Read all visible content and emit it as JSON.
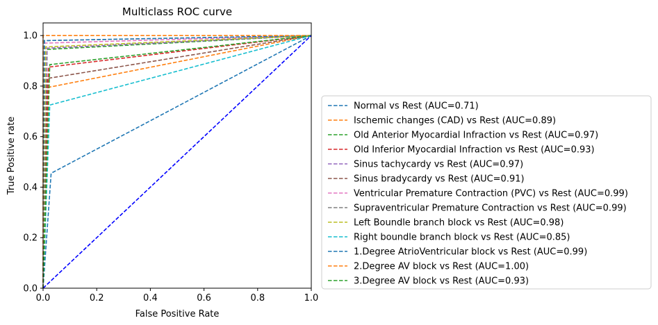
{
  "chart_data": {
    "type": "line",
    "title": "Multiclass ROC curve",
    "xlabel": "False Positive Rate",
    "ylabel": "True Positive rate",
    "xlim": [
      0,
      1
    ],
    "ylim": [
      0,
      1.05
    ],
    "xticks": [
      "0.0",
      "0.2",
      "0.4",
      "0.6",
      "0.8",
      "1.0"
    ],
    "yticks": [
      "0.0",
      "0.2",
      "0.4",
      "0.6",
      "0.8",
      "1.0"
    ],
    "grid": false,
    "legend_position": "right",
    "diagonal": {
      "x": [
        0,
        1
      ],
      "y": [
        0,
        1
      ],
      "color": "#0000ff",
      "style": "dashed"
    },
    "series": [
      {
        "name": "Normal vs Rest (AUC=0.71)",
        "color": "#1f77b4",
        "x": [
          0,
          0.03,
          1
        ],
        "y": [
          0,
          0.455,
          1
        ]
      },
      {
        "name": "Ischemic changes (CAD) vs Rest (AUC=0.89)",
        "color": "#ff7f0e",
        "x": [
          0,
          0.02,
          1
        ],
        "y": [
          0,
          0.795,
          1
        ]
      },
      {
        "name": "Old Anterior Myocardial Infraction vs Rest (AUC=0.97)",
        "color": "#2ca02c",
        "x": [
          0,
          0.015,
          1
        ],
        "y": [
          0,
          0.945,
          1
        ]
      },
      {
        "name": "Old Inferior Myocardial Infraction vs Rest (AUC=0.93)",
        "color": "#d62728",
        "x": [
          0,
          0.02,
          1
        ],
        "y": [
          0,
          0.875,
          1
        ]
      },
      {
        "name": "Sinus tachycardy vs Rest (AUC=0.97)",
        "color": "#9467bd",
        "x": [
          0,
          0.015,
          1
        ],
        "y": [
          0,
          0.95,
          1
        ]
      },
      {
        "name": "Sinus bradycardy vs Rest (AUC=0.91)",
        "color": "#8c564b",
        "x": [
          0,
          0.015,
          1
        ],
        "y": [
          0,
          0.83,
          1
        ]
      },
      {
        "name": "Ventricular Premature Contraction (PVC) vs Rest (AUC=0.99)",
        "color": "#e377c2",
        "x": [
          0,
          0.005,
          1
        ],
        "y": [
          0,
          0.97,
          1
        ]
      },
      {
        "name": "Supraventricular Premature Contraction vs Rest (AUC=0.99)",
        "color": "#7f7f7f",
        "x": [
          0,
          0.005,
          1
        ],
        "y": [
          0,
          0.98,
          1
        ]
      },
      {
        "name": "Left Boundle branch block vs Rest (AUC=0.98)",
        "color": "#bcbd22",
        "x": [
          0,
          0.01,
          1
        ],
        "y": [
          0,
          0.955,
          1
        ]
      },
      {
        "name": "Right boundle branch block vs Rest (AUC=0.85)",
        "color": "#17becf",
        "x": [
          0,
          0.025,
          1
        ],
        "y": [
          0,
          0.725,
          1
        ]
      },
      {
        "name": "1.Degree AtrioVentricular block vs Rest (AUC=0.99)",
        "color": "#1f77b4",
        "x": [
          0,
          0.005,
          1
        ],
        "y": [
          0,
          0.98,
          1
        ]
      },
      {
        "name": "2.Degree AV block vs Rest (AUC=1.00)",
        "color": "#ff7f0e",
        "x": [
          0,
          0.0,
          1
        ],
        "y": [
          0,
          1.0,
          1
        ]
      },
      {
        "name": "3.Degree AV block vs Rest (AUC=0.93)",
        "color": "#2ca02c",
        "x": [
          0,
          0.025,
          1
        ],
        "y": [
          0,
          0.885,
          1
        ]
      }
    ]
  }
}
